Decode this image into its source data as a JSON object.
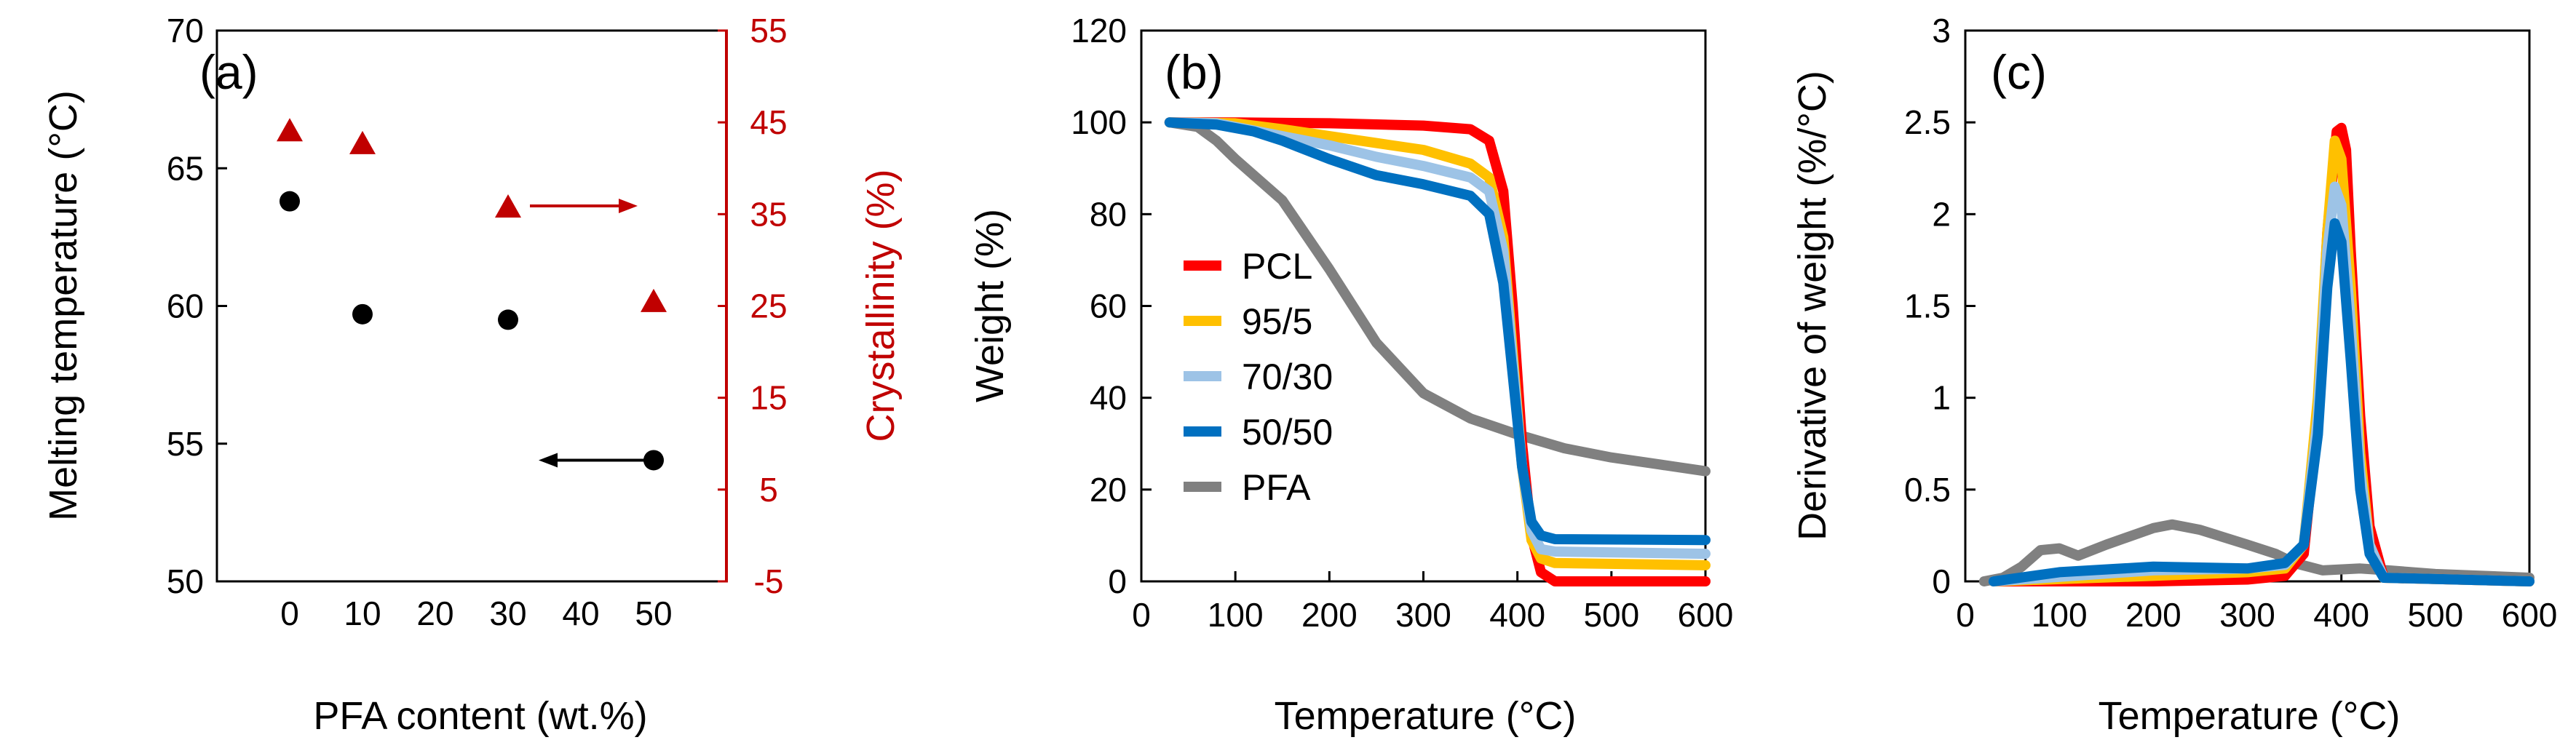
{
  "chart_data": [
    {
      "type": "scatter",
      "panel_label": "(a)",
      "title": "",
      "xlabel": "PFA content (wt.%)",
      "ylabel_left": "Melting temperature (°C)",
      "ylabel_right": "Crystallinity (%)",
      "xlim": [
        -10,
        60
      ],
      "xticks": [
        0,
        10,
        20,
        30,
        40,
        50
      ],
      "ylim_left": [
        50,
        70
      ],
      "yticks_left": [
        50,
        55,
        60,
        65,
        70
      ],
      "ylim_right": [
        -5,
        55
      ],
      "yticks_right": [
        -5,
        5,
        15,
        25,
        35,
        45,
        55
      ],
      "series": [
        {
          "name": "Melting temperature",
          "axis": "left",
          "marker": "circle",
          "color": "#000000",
          "x": [
            0,
            10,
            30,
            50
          ],
          "y": [
            63.8,
            59.7,
            59.5,
            54.4
          ]
        },
        {
          "name": "Crystallinity",
          "axis": "right",
          "marker": "triangle",
          "color": "#C00000",
          "x": [
            0,
            10,
            30,
            50
          ],
          "y": [
            44.2,
            42.8,
            35.9,
            25.6
          ]
        }
      ],
      "annotations": [
        {
          "type": "arrow",
          "direction": "left",
          "color": "#000000",
          "x": [
            50,
            35
          ],
          "y": [
            54.4,
            54.4
          ],
          "axis": "left"
        },
        {
          "type": "arrow",
          "direction": "right",
          "color": "#C00000",
          "x": [
            33,
            47
          ],
          "y": [
            35.9,
            35.9
          ],
          "axis": "right"
        }
      ]
    },
    {
      "type": "line",
      "panel_label": "(b)",
      "title": "",
      "xlabel": "Temperature (°C)",
      "ylabel": "Weight (%)",
      "xlim": [
        0,
        600
      ],
      "xticks": [
        0,
        100,
        200,
        300,
        400,
        500,
        600
      ],
      "ylim": [
        0,
        120
      ],
      "yticks": [
        0,
        20,
        40,
        60,
        80,
        100,
        120
      ],
      "legend": "center-left",
      "series": [
        {
          "name": "PCL",
          "color": "#FF0000",
          "x": [
            30,
            100,
            200,
            300,
            350,
            370,
            385,
            395,
            405,
            415,
            425,
            440,
            600
          ],
          "y": [
            100,
            100,
            99.8,
            99.3,
            98.5,
            96,
            85,
            60,
            30,
            10,
            2,
            0,
            0
          ]
        },
        {
          "name": "95/5",
          "color": "#FFC000",
          "x": [
            30,
            100,
            150,
            200,
            250,
            300,
            350,
            370,
            385,
            395,
            405,
            415,
            425,
            440,
            600
          ],
          "y": [
            100,
            99.8,
            98.5,
            97,
            95.5,
            94,
            91,
            88,
            75,
            50,
            25,
            9,
            5,
            4,
            3.5
          ]
        },
        {
          "name": "70/30",
          "color": "#9DC3E6",
          "x": [
            30,
            80,
            150,
            200,
            250,
            300,
            350,
            370,
            385,
            395,
            405,
            415,
            425,
            440,
            600
          ],
          "y": [
            100,
            99.8,
            97,
            95,
            92.5,
            90.5,
            88,
            85,
            72,
            48,
            25,
            11,
            7,
            6.5,
            6
          ]
        },
        {
          "name": "50/50",
          "color": "#0070C0",
          "x": [
            30,
            80,
            120,
            150,
            200,
            250,
            300,
            350,
            370,
            385,
            395,
            405,
            415,
            425,
            440,
            600
          ],
          "y": [
            100,
            99.5,
            98,
            96,
            92,
            88.5,
            86.5,
            84,
            80,
            65,
            45,
            25,
            13,
            10,
            9.2,
            9
          ]
        },
        {
          "name": "PFA",
          "color": "#808080",
          "x": [
            30,
            60,
            80,
            100,
            150,
            200,
            250,
            300,
            350,
            400,
            450,
            500,
            550,
            600
          ],
          "y": [
            100,
            99,
            96,
            92,
            83,
            68,
            52,
            41,
            35.5,
            32,
            29,
            27,
            25.5,
            24
          ]
        }
      ]
    },
    {
      "type": "line",
      "panel_label": "(c)",
      "title": "",
      "xlabel": "Temperature (°C)",
      "ylabel": "Derivative of weight (%/°C)",
      "xlim": [
        0,
        600
      ],
      "xticks": [
        0,
        100,
        200,
        300,
        400,
        500,
        600
      ],
      "ylim": [
        0,
        3
      ],
      "yticks": [
        0,
        0.5,
        1,
        1.5,
        2,
        2.5,
        3
      ],
      "series": [
        {
          "name": "PCL",
          "color": "#FF0000",
          "x": [
            30,
            200,
            300,
            340,
            360,
            375,
            385,
            395,
            400,
            405,
            410,
            420,
            430,
            445,
            600
          ],
          "y": [
            0,
            0,
            0.01,
            0.03,
            0.15,
            0.9,
            1.9,
            2.45,
            2.47,
            2.35,
            1.8,
            0.9,
            0.3,
            0.02,
            0
          ]
        },
        {
          "name": "95/5",
          "color": "#FFC000",
          "x": [
            30,
            200,
            300,
            340,
            360,
            375,
            385,
            393,
            400,
            410,
            420,
            430,
            445,
            600
          ],
          "y": [
            0,
            0.03,
            0.05,
            0.07,
            0.2,
            1.0,
            1.9,
            2.4,
            2.3,
            1.6,
            0.7,
            0.2,
            0.02,
            0
          ]
        },
        {
          "name": "70/30",
          "color": "#9DC3E6",
          "x": [
            30,
            200,
            300,
            340,
            360,
            375,
            385,
            393,
            400,
            410,
            420,
            430,
            445,
            600
          ],
          "y": [
            0,
            0.06,
            0.07,
            0.09,
            0.2,
            0.9,
            1.8,
            2.15,
            2.05,
            1.4,
            0.6,
            0.2,
            0.02,
            0
          ]
        },
        {
          "name": "50/50",
          "color": "#0070C0",
          "x": [
            30,
            100,
            200,
            300,
            340,
            360,
            375,
            385,
            393,
            400,
            410,
            420,
            430,
            445,
            600
          ],
          "y": [
            0,
            0.05,
            0.08,
            0.07,
            0.1,
            0.2,
            0.8,
            1.6,
            1.95,
            1.85,
            1.2,
            0.5,
            0.15,
            0.02,
            0
          ]
        },
        {
          "name": "PFA",
          "color": "#808080",
          "x": [
            20,
            40,
            60,
            80,
            100,
            120,
            150,
            200,
            220,
            250,
            300,
            330,
            350,
            380,
            420,
            450,
            500,
            550,
            600
          ],
          "y": [
            0,
            0.02,
            0.08,
            0.17,
            0.18,
            0.14,
            0.2,
            0.29,
            0.31,
            0.28,
            0.2,
            0.15,
            0.1,
            0.06,
            0.07,
            0.06,
            0.04,
            0.03,
            0.02
          ]
        }
      ]
    }
  ]
}
